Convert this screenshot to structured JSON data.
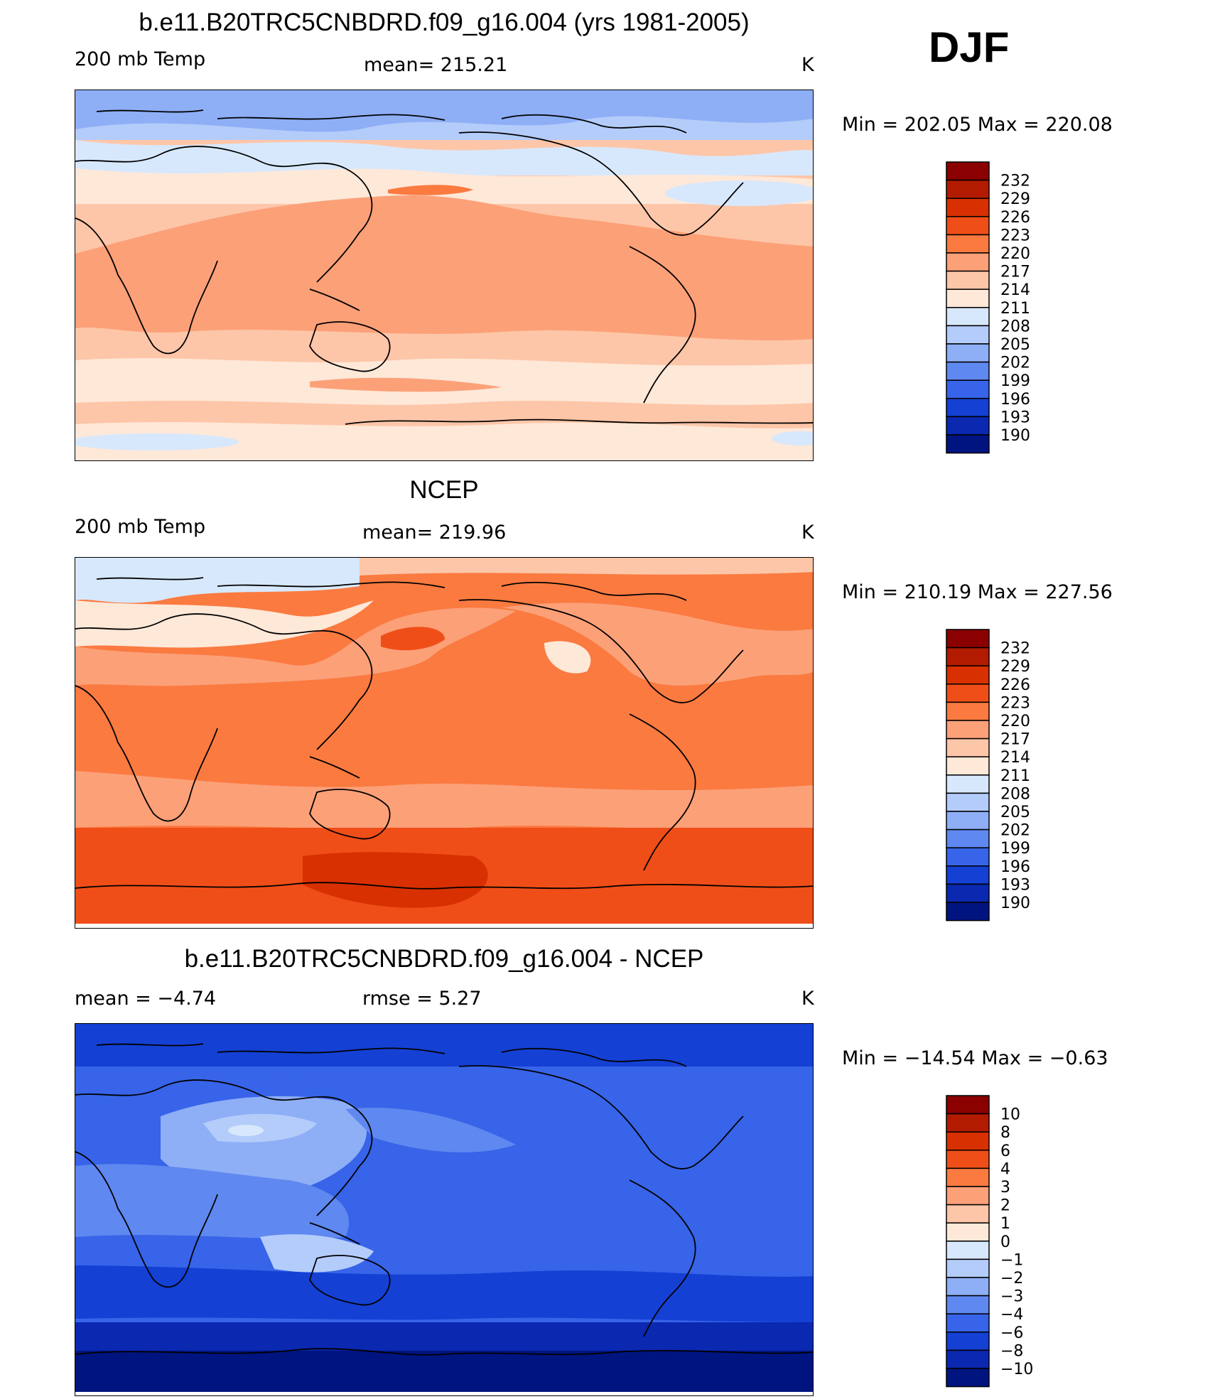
{
  "season": "DJF",
  "panels": [
    {
      "id": "model",
      "title": "b.e11.B20TRC5CNBDRD.f09_g16.004 (yrs 1981-2005)",
      "left_label": "200 mb Temp",
      "center_label": "mean= 215.21",
      "unit": "K",
      "minmax": "Min = 202.05 Max = 220.08",
      "colorbar": {
        "labels": [
          "232",
          "229",
          "226",
          "223",
          "220",
          "217",
          "214",
          "211",
          "208",
          "205",
          "202",
          "199",
          "196",
          "193",
          "190"
        ],
        "colors": [
          "#8b0000",
          "#b31b00",
          "#d83000",
          "#f04e18",
          "#fa7a40",
          "#fca078",
          "#fdc6a8",
          "#fee8d8",
          "#d8e8fc",
          "#b4ccfa",
          "#8eaef6",
          "#5f88f0",
          "#3764e8",
          "#1440d4",
          "#0a28b0",
          "#001480"
        ]
      }
    },
    {
      "id": "obs",
      "title": "NCEP",
      "left_label": "200 mb Temp",
      "center_label": "mean= 219.96",
      "unit": "K",
      "minmax": "Min = 210.19 Max = 227.56",
      "colorbar": {
        "labels": [
          "232",
          "229",
          "226",
          "223",
          "220",
          "217",
          "214",
          "211",
          "208",
          "205",
          "202",
          "199",
          "196",
          "193",
          "190"
        ],
        "colors": [
          "#8b0000",
          "#b31b00",
          "#d83000",
          "#f04e18",
          "#fa7a40",
          "#fca078",
          "#fdc6a8",
          "#fee8d8",
          "#d8e8fc",
          "#b4ccfa",
          "#8eaef6",
          "#5f88f0",
          "#3764e8",
          "#1440d4",
          "#0a28b0",
          "#001480"
        ]
      }
    },
    {
      "id": "diff",
      "title": "b.e11.B20TRC5CNBDRD.f09_g16.004 - NCEP",
      "left_label": "mean =   −4.74",
      "center_label": "rmse =    5.27",
      "unit": "K",
      "minmax": "Min = −14.54 Max =  −0.63",
      "colorbar": {
        "labels": [
          "10",
          "8",
          "6",
          "4",
          "3",
          "2",
          "1",
          "0",
          "−1",
          "−2",
          "−3",
          "−4",
          "−6",
          "−8",
          "−10"
        ],
        "colors": [
          "#8b0000",
          "#b31b00",
          "#d83000",
          "#f04e18",
          "#fa7a40",
          "#fca078",
          "#fdc6a8",
          "#fee8d8",
          "#d8e8fc",
          "#b4ccfa",
          "#8eaef6",
          "#5f88f0",
          "#3764e8",
          "#1440d4",
          "#0a28b0",
          "#001480"
        ]
      }
    }
  ]
}
